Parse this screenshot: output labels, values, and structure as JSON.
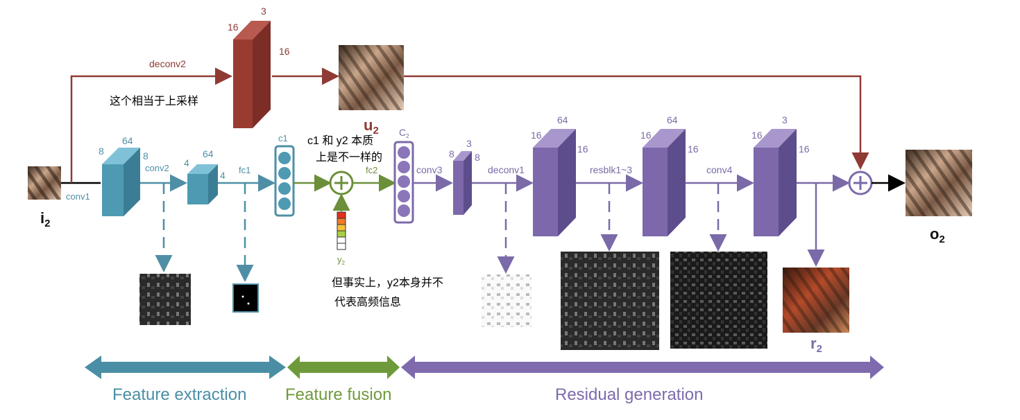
{
  "inputs": {
    "i2": "i",
    "i2_sub": "2"
  },
  "outputs": {
    "o2": "o",
    "o2_sub": "2",
    "u2": "u",
    "u2_sub": "2",
    "r2": "r",
    "r2_sub": "2"
  },
  "layers": {
    "conv1": "conv1",
    "conv2": "conv2",
    "fc1": "fc1",
    "c1": "c1",
    "fc2": "fc2",
    "conv3": "conv3",
    "deconv1": "deconv1",
    "resblk": "resblk1~3",
    "conv4": "conv4",
    "deconv2": "deconv2",
    "c2": "C",
    "c2_sub": "2",
    "y2": "y",
    "y2_sub": "2"
  },
  "dims": {
    "b1_top": "64",
    "b1_left": "8",
    "b1_right": "8",
    "b2_top": "64",
    "b2_left": "4",
    "b2_right": "4",
    "red_top": "3",
    "red_left": "16",
    "red_right": "16",
    "p1_top": "3",
    "p1_left": "8",
    "p1_right": "8",
    "p2_top": "64",
    "p2_left": "16",
    "p2_right": "16",
    "p3_top": "64",
    "p3_left": "16",
    "p3_right": "16",
    "p4_top": "3",
    "p4_left": "16",
    "p4_right": "16"
  },
  "annotations": {
    "upsample_note": "这个相当于上采样",
    "c1_y2_note_1": "c1 和 y2 本质",
    "c1_y2_note_2": "上是不一样的",
    "y2_note_1": "但事实上，y2本身并不",
    "y2_note_2": "代表高频信息"
  },
  "stages": [
    {
      "name": "Feature extraction",
      "color": "#4a8ea5"
    },
    {
      "name": "Feature fusion",
      "color": "#6f9a3c"
    },
    {
      "name": "Residual generation",
      "color": "#7e6aad"
    }
  ],
  "y2_vector_colors": [
    "#e2301d",
    "#f07a2a",
    "#f4c13a",
    "#a8cf45",
    "#ffffff",
    "#ffffff"
  ]
}
